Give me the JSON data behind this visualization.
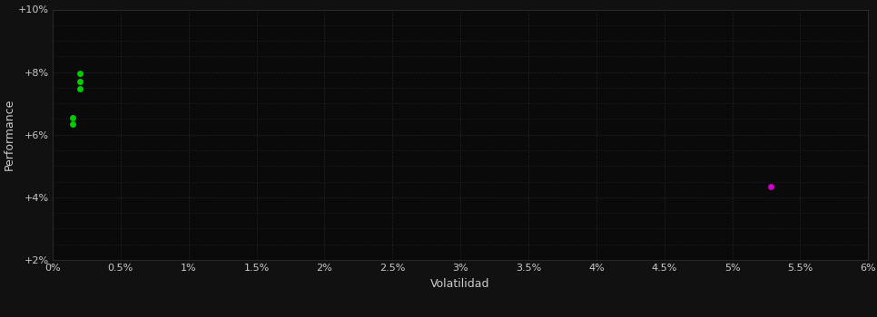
{
  "background_color": "#111111",
  "plot_bg_color": "#0a0a0a",
  "grid_color": "#2a2a2a",
  "text_color": "#cccccc",
  "xlabel": "Volatilidad",
  "ylabel": "Performance",
  "x_ticks": [
    0,
    0.5,
    1.0,
    1.5,
    2.0,
    2.5,
    3.0,
    3.5,
    4.0,
    4.5,
    5.0,
    5.5,
    6.0
  ],
  "y_ticks": [
    2,
    4,
    6,
    8,
    10
  ],
  "y_minor_ticks": [
    2,
    2.5,
    3.0,
    3.5,
    4.0,
    4.5,
    5.0,
    5.5,
    6.0,
    6.5,
    7.0,
    7.5,
    8.0,
    8.5,
    9.0,
    9.5,
    10.0
  ],
  "xlim": [
    0,
    6.0
  ],
  "ylim": [
    2,
    10
  ],
  "green_points": [
    [
      0.2,
      7.95
    ],
    [
      0.2,
      7.7
    ],
    [
      0.2,
      7.48
    ],
    [
      0.15,
      6.55
    ],
    [
      0.15,
      6.35
    ]
  ],
  "magenta_points": [
    [
      5.28,
      4.35
    ]
  ],
  "green_color": "#00cc00",
  "magenta_color": "#cc00cc",
  "marker_size": 5
}
